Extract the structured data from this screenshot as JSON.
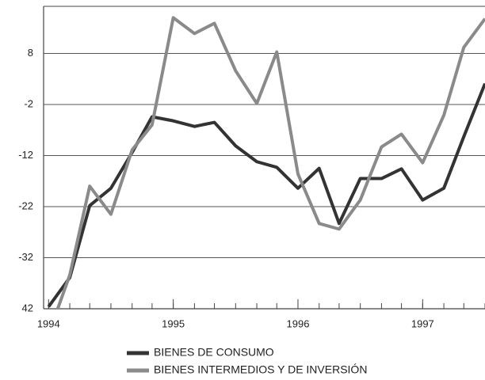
{
  "chart_data": {
    "type": "line",
    "x": [
      1994,
      1994.17,
      1994.33,
      1994.5,
      1994.67,
      1994.83,
      1995,
      1995.17,
      1995.33,
      1995.5,
      1995.67,
      1995.83,
      1996,
      1996.17,
      1996.33,
      1996.5,
      1996.67,
      1996.83,
      1997,
      1997.17,
      1997.33,
      1997.5
    ],
    "series": [
      {
        "name": "BIENES DE CONSUMO",
        "color": "#333333",
        "values": [
          -41.6,
          -35.9,
          -21.8,
          -18.4,
          -11.4,
          -4.4,
          -5.2,
          -6.3,
          -5.5,
          -10.1,
          -13.2,
          -14.3,
          -18.4,
          -14.5,
          -25.3,
          -16.5,
          -16.5,
          -14.6,
          -20.7,
          -18.4,
          -8.3,
          2.1
        ]
      },
      {
        "name": "BIENES INTERMEDIOS Y DE INVERSIÓN",
        "color": "#8a8a8a",
        "values": [
          -47,
          -35.4,
          -18.0,
          -23.5,
          -10.9,
          -6.0,
          15.0,
          11.9,
          13.9,
          4.6,
          -1.8,
          8.3,
          -15.6,
          -25.3,
          -26.4,
          -20.7,
          -10.3,
          -7.8,
          -13.4,
          -4.1,
          9.2,
          14.8
        ]
      }
    ],
    "xlim": [
      1993.96,
      1997.5
    ],
    "xticks": [
      1994,
      1995,
      1996,
      1997
    ],
    "ylim": [
      -42,
      18
    ],
    "yticks": [
      {
        "value": -42,
        "label": "42"
      },
      -32,
      -22,
      -12,
      -2,
      8
    ],
    "grid": true
  }
}
